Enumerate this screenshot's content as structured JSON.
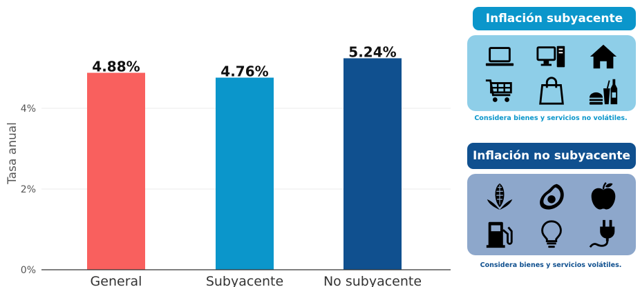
{
  "chart_data": {
    "type": "bar",
    "categories": [
      "General",
      "Subyacente",
      "No subyacente"
    ],
    "values": [
      4.88,
      4.76,
      5.24
    ],
    "value_labels": [
      "4.88%",
      "4.76%",
      "5.24%"
    ],
    "colors": [
      "#f9605e",
      "#0b96cb",
      "#10508f"
    ],
    "ylabel": "Tasa anual",
    "ylim": [
      0,
      5.6
    ],
    "yticks": [
      0,
      2,
      4
    ],
    "ytick_labels": [
      "0%",
      "2%",
      "4%"
    ],
    "grid": true
  },
  "panels": {
    "subyacente": {
      "title": "Inflación subyacente",
      "caption": "Considera bienes y servicios no volátiles.",
      "icons": [
        "laptop-icon",
        "desktop-computer-icon",
        "house-icon",
        "shopping-cart-icon",
        "shopping-bag-icon",
        "fast-food-icon"
      ],
      "title_color": "#0b96cb",
      "box_color": "#8ecee8",
      "caption_color": "#0b96cb"
    },
    "no_subyacente": {
      "title": "Inflación no subyacente",
      "caption": "Considera bienes y servicios volátiles.",
      "icons": [
        "corn-icon",
        "avocado-icon",
        "apple-icon",
        "fuel-pump-icon",
        "light-bulb-icon",
        "electric-plug-icon"
      ],
      "title_color": "#10508f",
      "box_color": "#8da7cb",
      "caption_color": "#10508f"
    }
  }
}
